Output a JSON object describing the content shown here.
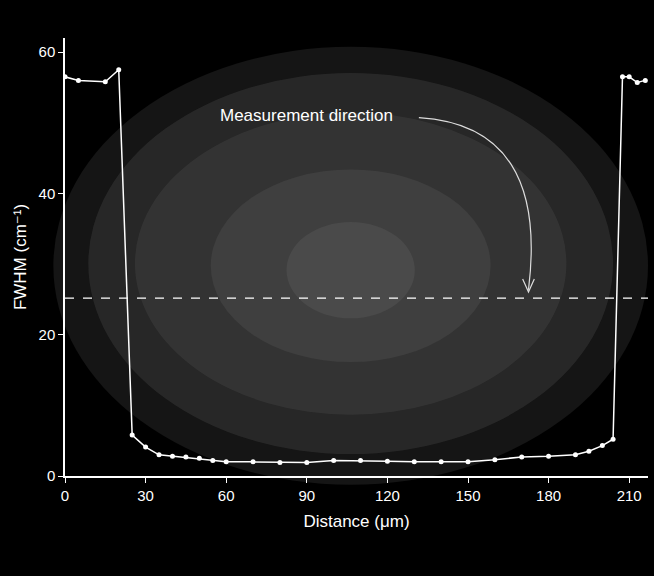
{
  "chart_data": {
    "type": "line",
    "x_label": "Distance (μm)",
    "y_label": "FWHM (cm⁻¹)",
    "annotations": [
      {
        "text": "Measurement direction"
      }
    ],
    "x": [
      0,
      5,
      15,
      20,
      25,
      30,
      35,
      40,
      45,
      50,
      55,
      60,
      70,
      80,
      90,
      100,
      110,
      120,
      130,
      140,
      150,
      160,
      170,
      180,
      190,
      195,
      200,
      204,
      207.5,
      210,
      213,
      216
    ],
    "values": [
      56.5,
      56,
      55.8,
      57.5,
      5.8,
      4.1,
      3.0,
      2.8,
      2.7,
      2.5,
      2.2,
      2.0,
      2.0,
      1.9,
      1.9,
      2.2,
      2.2,
      2.1,
      2.0,
      2.0,
      2.0,
      2.3,
      2.7,
      2.8,
      3.0,
      3.5,
      4.3,
      5.2,
      56.5,
      56.5,
      55.7,
      56
    ],
    "color": "#ffffff",
    "marker": "circle",
    "line_style": "solid",
    "xlim": [
      0,
      217
    ],
    "xticks": [
      0,
      30,
      60,
      90,
      120,
      150,
      180,
      210
    ],
    "ylim": [
      0,
      62
    ],
    "yticks": [
      0,
      20,
      40,
      60
    ],
    "grid": false
  }
}
